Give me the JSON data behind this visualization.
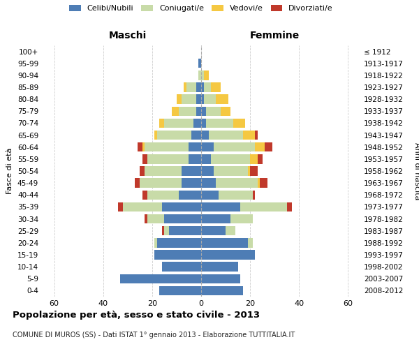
{
  "age_groups": [
    "100+",
    "95-99",
    "90-94",
    "85-89",
    "80-84",
    "75-79",
    "70-74",
    "65-69",
    "60-64",
    "55-59",
    "50-54",
    "45-49",
    "40-44",
    "35-39",
    "30-34",
    "25-29",
    "20-24",
    "15-19",
    "10-14",
    "5-9",
    "0-4"
  ],
  "birth_years": [
    "≤ 1912",
    "1913-1917",
    "1918-1922",
    "1923-1927",
    "1928-1932",
    "1933-1937",
    "1938-1942",
    "1943-1947",
    "1948-1952",
    "1953-1957",
    "1958-1962",
    "1963-1967",
    "1968-1972",
    "1973-1977",
    "1978-1982",
    "1983-1987",
    "1988-1992",
    "1993-1997",
    "1998-2002",
    "2003-2007",
    "2008-2012"
  ],
  "maschi": {
    "celibe": [
      0,
      1,
      0,
      2,
      2,
      2,
      3,
      4,
      5,
      5,
      8,
      8,
      9,
      16,
      15,
      13,
      18,
      19,
      16,
      33,
      17
    ],
    "coniugato": [
      0,
      0,
      1,
      4,
      6,
      7,
      12,
      14,
      18,
      17,
      15,
      17,
      13,
      16,
      7,
      2,
      1,
      0,
      0,
      0,
      0
    ],
    "vedovo": [
      0,
      0,
      0,
      1,
      2,
      3,
      2,
      1,
      1,
      0,
      0,
      0,
      0,
      0,
      0,
      0,
      0,
      0,
      0,
      0,
      0
    ],
    "divorziato": [
      0,
      0,
      0,
      0,
      0,
      0,
      0,
      0,
      2,
      2,
      2,
      2,
      2,
      2,
      1,
      1,
      0,
      0,
      0,
      0,
      0
    ]
  },
  "femmine": {
    "nubile": [
      0,
      0,
      0,
      1,
      1,
      2,
      2,
      3,
      5,
      4,
      5,
      6,
      7,
      16,
      12,
      10,
      19,
      22,
      15,
      16,
      17
    ],
    "coniugata": [
      0,
      0,
      1,
      3,
      5,
      6,
      11,
      14,
      17,
      16,
      14,
      17,
      14,
      19,
      9,
      4,
      2,
      0,
      0,
      0,
      0
    ],
    "vedova": [
      0,
      0,
      2,
      4,
      5,
      4,
      5,
      5,
      4,
      3,
      1,
      1,
      0,
      0,
      0,
      0,
      0,
      0,
      0,
      0,
      0
    ],
    "divorziata": [
      0,
      0,
      0,
      0,
      0,
      0,
      0,
      1,
      3,
      2,
      3,
      3,
      1,
      2,
      0,
      0,
      0,
      0,
      0,
      0,
      0
    ]
  },
  "colors": {
    "celibe": "#4e7db5",
    "coniugato": "#c8dba8",
    "vedovo": "#f5c842",
    "divorziato": "#c0392b"
  },
  "xlim": 65,
  "title": "Popolazione per età, sesso e stato civile - 2013",
  "subtitle": "COMUNE DI MUROS (SS) - Dati ISTAT 1° gennaio 2013 - Elaborazione TUTTITALIA.IT",
  "ylabel_left": "Fasce di età",
  "ylabel_right": "Anni di nascita",
  "xlabel_maschi": "Maschi",
  "xlabel_femmine": "Femmine",
  "legend_labels": [
    "Celibi/Nubili",
    "Coniugati/e",
    "Vedovi/e",
    "Divorziati/e"
  ],
  "background_color": "#ffffff",
  "grid_color": "#c8c8c8"
}
